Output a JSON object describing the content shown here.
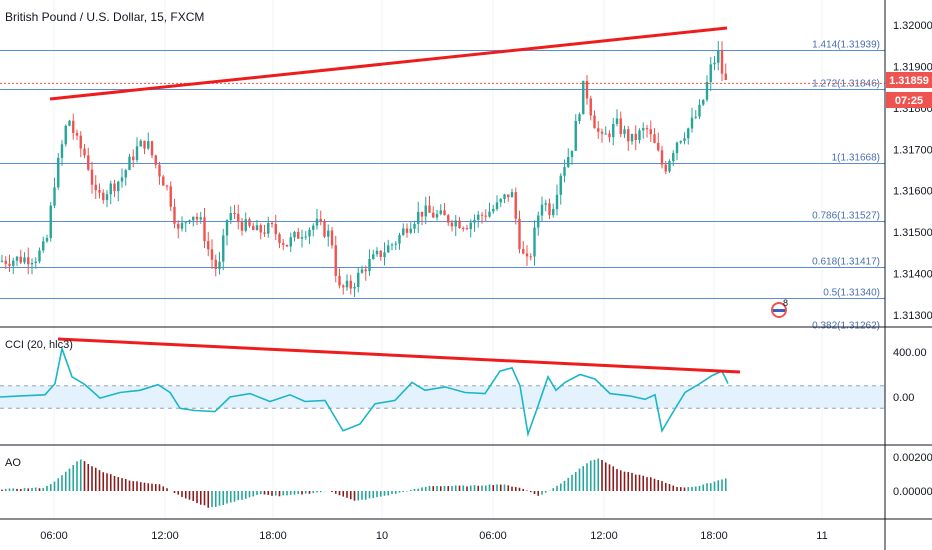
{
  "chart_data": {
    "type": "candlestick",
    "title": "British Pound / U.S. Dollar, 15, FXCM",
    "x_tick_labels": [
      "06:00",
      "12:00",
      "18:00",
      "10",
      "06:00",
      "12:00",
      "18:00",
      "11"
    ],
    "price_axis": {
      "range": [
        1.3125,
        1.3205
      ],
      "tick_labels": [
        "1.32000",
        "1.31900",
        "1.31800",
        "1.31700",
        "1.31600",
        "1.31500",
        "1.31400",
        "1.31300"
      ],
      "last_price_label": "1.31859",
      "countdown_label": "07:25"
    },
    "fib_levels": [
      {
        "label": "1.414(1.31939)",
        "price": 1.31939
      },
      {
        "label": "1.272(1.31846)",
        "price": 1.31846
      },
      {
        "label": "1(1.31668)",
        "price": 1.31668
      },
      {
        "label": "0.786(1.31527)",
        "price": 1.31527
      },
      {
        "label": "0.618(1.31417)",
        "price": 1.31417
      },
      {
        "label": "0.5(1.31340)",
        "price": 1.3134
      },
      {
        "label": "0.382(1.31262)",
        "price": 1.31262
      }
    ],
    "indicators": {
      "cci": {
        "label": "CCI (20, hlc3)",
        "tick_labels": [
          "400.00",
          "0.00"
        ],
        "range": [
          -350,
          500
        ],
        "band": [
          100,
          -100
        ]
      },
      "ao": {
        "label": "AO",
        "tick_labels": [
          "0.00200",
          "0.00000"
        ],
        "range": [
          -0.0013,
          0.0023
        ]
      }
    },
    "colors": {
      "up": "#26a69a",
      "down": "#ef5350",
      "fib_line": "#5b8bd6",
      "trendline": "#ee1c1c",
      "cci_line": "#1ab6c8",
      "cci_band": "#e3f2fd",
      "ao_up": "#26a69a",
      "ao_down": "#8b1a1a"
    },
    "flag_badge_count": "8"
  }
}
